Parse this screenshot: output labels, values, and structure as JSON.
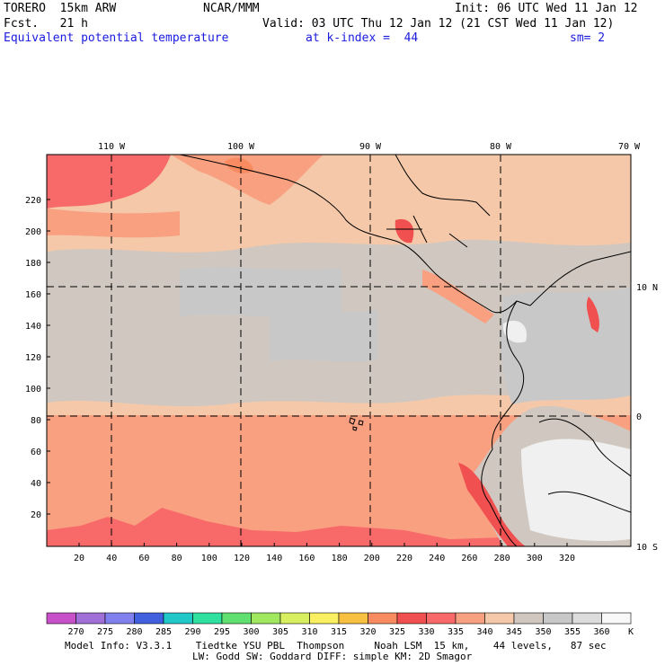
{
  "header": {
    "model": "TORERO  15km ARW",
    "center": "NCAR/MMM",
    "init": "Init: 06 UTC Wed 11 Jan 12",
    "fcst": "Fcst.   21 h",
    "valid": "Valid: 03 UTC Thu 12 Jan 12 (21 CST Wed 11 Jan 12)",
    "field": "Equivalent potential temperature",
    "level": "at k-index =  44",
    "smoothing": "sm= 2"
  },
  "map": {
    "lon_labels": [
      "110 W",
      "100 W",
      "90 W",
      "80 W",
      "70 W"
    ],
    "lat_labels": [
      "10 N",
      "0",
      "10 S"
    ],
    "x_ticks": [
      "20",
      "40",
      "60",
      "80",
      "100",
      "120",
      "140",
      "160",
      "180",
      "200",
      "220",
      "240",
      "260",
      "280",
      "300",
      "320"
    ],
    "y_ticks": [
      "20",
      "40",
      "60",
      "80",
      "100",
      "120",
      "140",
      "160",
      "180",
      "200",
      "220"
    ]
  },
  "colorbar": {
    "unit": "K",
    "labels": [
      "270",
      "275",
      "280",
      "285",
      "290",
      "295",
      "300",
      "305",
      "310",
      "315",
      "320",
      "325",
      "330",
      "335",
      "340",
      "345",
      "350",
      "355",
      "360"
    ],
    "colors": [
      "#c850c8",
      "#a070d8",
      "#8080ee",
      "#4060e0",
      "#20c8c8",
      "#30e0a0",
      "#60e070",
      "#a0e860",
      "#d8f060",
      "#f8f060",
      "#f8c040",
      "#f88c60",
      "#f05050",
      "#f86a6a",
      "#f8a080",
      "#f4c8a8",
      "#d0c8c0",
      "#c8c8c8",
      "#dcdcdc",
      "#f8f8f8"
    ]
  },
  "footer": {
    "line1": "Model Info: V3.3.1    Tiedtke YSU PBL  Thompson     Noah LSM  15 km,    44 levels,   87 sec",
    "line2": "LW: Godd SW: Goddard DIFF: simple KM: 2D Smagor"
  }
}
